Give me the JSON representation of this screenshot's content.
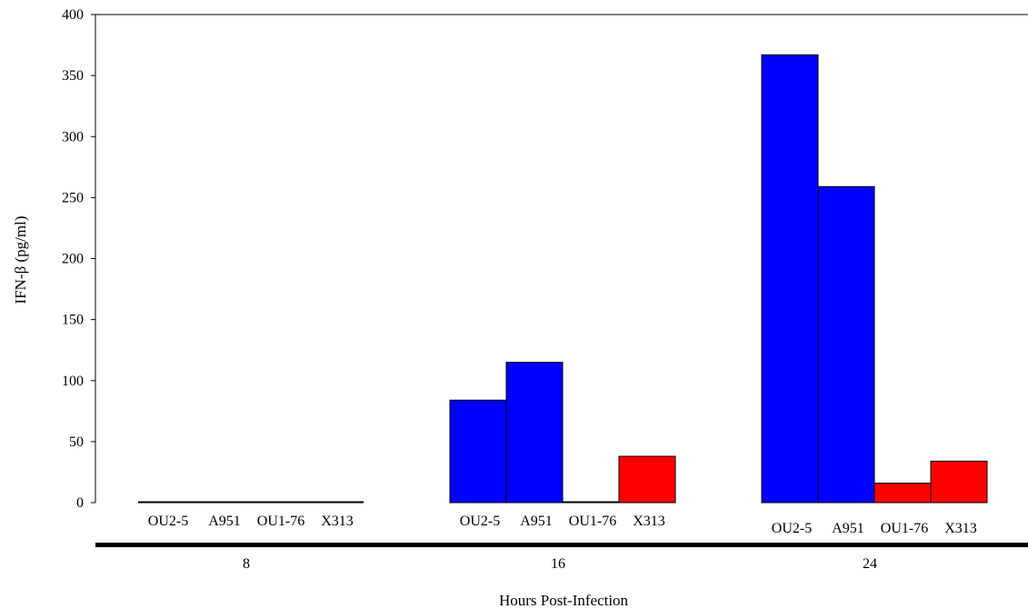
{
  "chart_data": {
    "type": "bar",
    "title": "",
    "ylabel": "IFN-β (pg/ml)",
    "xlabel": "Hours Post-Infection",
    "ylim": [
      0,
      400
    ],
    "yticks": [
      "0",
      "50",
      "100",
      "150",
      "200",
      "250",
      "300",
      "350",
      "400"
    ],
    "bar_labels": [
      "OU2-5",
      "A951",
      "OU1-76",
      "X313"
    ],
    "groups": [
      {
        "label": "8",
        "bars": [
          {
            "label": "OU2-5",
            "value": 0,
            "color": "#0000ff"
          },
          {
            "label": "A951",
            "value": 0,
            "color": "#0000ff"
          },
          {
            "label": "OU1-76",
            "value": 0,
            "color": "#ff0000"
          },
          {
            "label": "X313",
            "value": 0,
            "color": "#ff0000"
          }
        ]
      },
      {
        "label": "16",
        "bars": [
          {
            "label": "OU2-5",
            "value": 84,
            "color": "#0000ff"
          },
          {
            "label": "A951",
            "value": 115,
            "color": "#0000ff"
          },
          {
            "label": "OU1-76",
            "value": 0,
            "color": "#ff0000"
          },
          {
            "label": "X313",
            "value": 38,
            "color": "#ff0000"
          }
        ]
      },
      {
        "label": "24",
        "bars": [
          {
            "label": "OU2-5",
            "value": 367,
            "color": "#0000ff"
          },
          {
            "label": "A951",
            "value": 259,
            "color": "#0000ff"
          },
          {
            "label": "OU1-76",
            "value": 16,
            "color": "#ff0000"
          },
          {
            "label": "X313",
            "value": 34,
            "color": "#ff0000"
          }
        ]
      }
    ],
    "grid": false,
    "legend": "none"
  }
}
